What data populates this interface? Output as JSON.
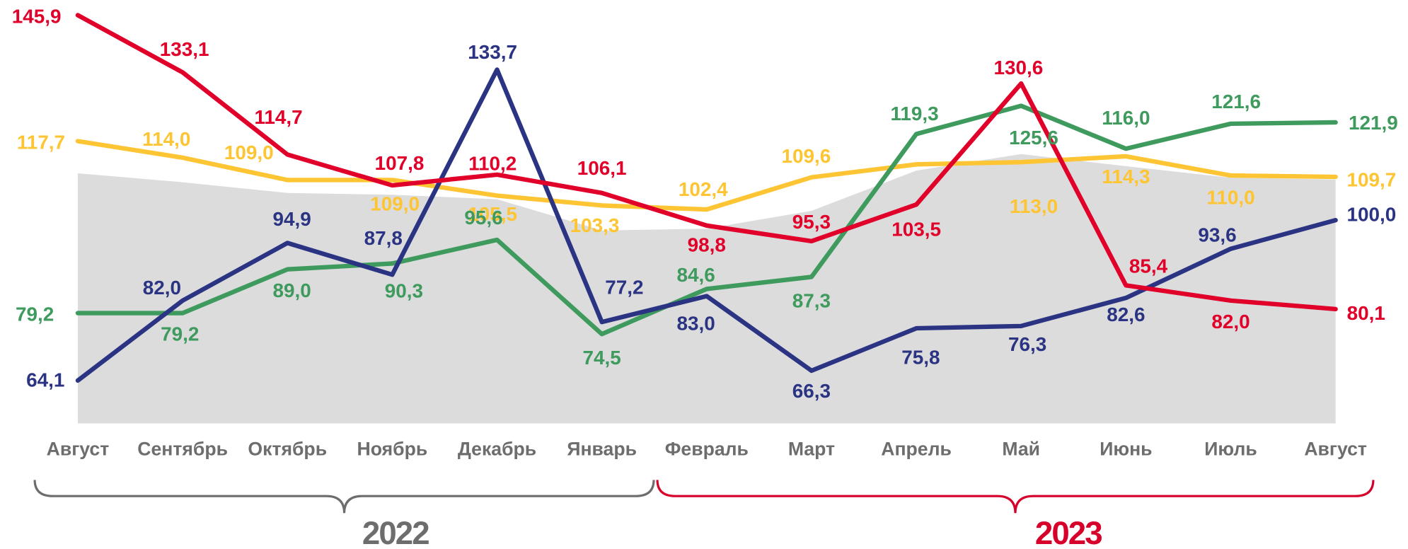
{
  "chart_data": {
    "type": "line",
    "categories": [
      "Август",
      "Сентябрь",
      "Октябрь",
      "Ноябрь",
      "Декабрь",
      "Январь",
      "Февраль",
      "Март",
      "Апрель",
      "Май",
      "Июнь",
      "Июль",
      "Август"
    ],
    "ylim": [
      54.5,
      149.3
    ],
    "series": [
      {
        "type": "area",
        "color": "#dcdcdc",
        "values": [
          110.5,
          108.5,
          106.1,
          105.7,
          104.7,
          97.7,
          98.1,
          102.1,
          111.1,
          114.8,
          112.1,
          109.5,
          109.1
        ]
      },
      {
        "type": "line",
        "color": "#fdc533",
        "values": [
          117.7,
          114.0,
          109.0,
          109.0,
          105.5,
          103.3,
          102.4,
          109.6,
          112.5,
          113.0,
          114.3,
          110.0,
          109.7
        ],
        "value_labels": [
          "117,7",
          "114,0",
          "109,0",
          "109,0",
          "105,5",
          "103,3",
          "102,4",
          "109,6",
          null,
          "113,0",
          "114,3",
          "110,0",
          "109,7"
        ]
      },
      {
        "type": "line",
        "color": "#3f9a5e",
        "values": [
          79.2,
          79.2,
          89.0,
          90.3,
          95.6,
          74.5,
          84.6,
          87.3,
          119.3,
          125.6,
          116.0,
          121.6,
          121.9
        ],
        "value_labels": [
          "79,2",
          "79,2",
          "89,0",
          "90,3",
          "95,6",
          "74,5",
          "84,6",
          "87,3",
          "119,3",
          "125,6",
          "116,0",
          "121,6",
          "121,9"
        ]
      },
      {
        "type": "line",
        "color": "#2b3483",
        "values": [
          64.1,
          82.0,
          94.9,
          87.8,
          133.7,
          77.2,
          83.0,
          66.3,
          75.8,
          76.3,
          82.6,
          93.6,
          100.0
        ],
        "value_labels": [
          "64,1",
          "82,0",
          "94,9",
          "87,8",
          "133,7",
          "77,2",
          "83,0",
          "66,3",
          "75,8",
          "76,3",
          "82,6",
          "93,6",
          "100,0"
        ]
      },
      {
        "type": "line",
        "color": "#e0002a",
        "values": [
          145.9,
          133.1,
          114.7,
          107.8,
          110.2,
          106.1,
          98.8,
          95.3,
          103.5,
          130.6,
          85.4,
          82.0,
          80.1
        ],
        "value_labels": [
          "145,9",
          "133,1",
          "114,7",
          "107,8",
          "110,2",
          "106,1",
          "98,8",
          "95,3",
          "103,5",
          "130,6",
          "85,4",
          "82,0",
          "80,1"
        ]
      }
    ],
    "groups": [
      {
        "label": "2022",
        "color": "#6d6d6d"
      },
      {
        "label": "2023",
        "color": "#d6002a"
      }
    ]
  }
}
